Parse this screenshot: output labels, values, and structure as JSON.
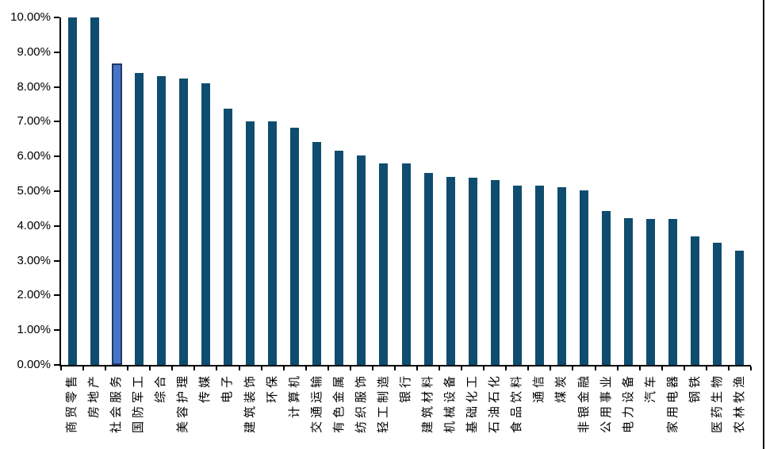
{
  "chart_data": {
    "type": "bar",
    "title": "",
    "xlabel": "",
    "ylabel": "",
    "legend": "none",
    "grid": false,
    "ylim": [
      0,
      10
    ],
    "y_ticks": [
      "0.00%",
      "1.00%",
      "2.00%",
      "3.00%",
      "4.00%",
      "5.00%",
      "6.00%",
      "7.00%",
      "8.00%",
      "9.00%",
      "10.00%"
    ],
    "categories": [
      "商贸零售",
      "房地产",
      "社会服务",
      "国防军工",
      "综合",
      "美容护理",
      "传媒",
      "电子",
      "建筑装饰",
      "环保",
      "计算机",
      "交通运输",
      "有色金属",
      "纺织服饰",
      "轻工制造",
      "银行",
      "建筑材料",
      "机械设备",
      "基础化工",
      "石油石化",
      "食品饮料",
      "通信",
      "煤炭",
      "非银金融",
      "公用事业",
      "电力设备",
      "汽车",
      "家用电器",
      "钢铁",
      "医药生物",
      "农林牧渔"
    ],
    "values": [
      10.0,
      10.0,
      8.67,
      8.4,
      8.31,
      8.24,
      8.1,
      7.38,
      7.0,
      7.0,
      6.83,
      6.42,
      6.17,
      6.02,
      5.8,
      5.8,
      5.52,
      5.4,
      5.39,
      5.33,
      5.16,
      5.15,
      5.12,
      5.03,
      4.44,
      4.22,
      4.21,
      4.19,
      3.7,
      3.52,
      3.28
    ],
    "highlight_index": 2,
    "highlighted_category": "社会服务",
    "bar_color": "#0E4D6F",
    "highlight_fill": "#4775C6",
    "highlight_border": "#1F3864",
    "axis_color": "#000000"
  }
}
